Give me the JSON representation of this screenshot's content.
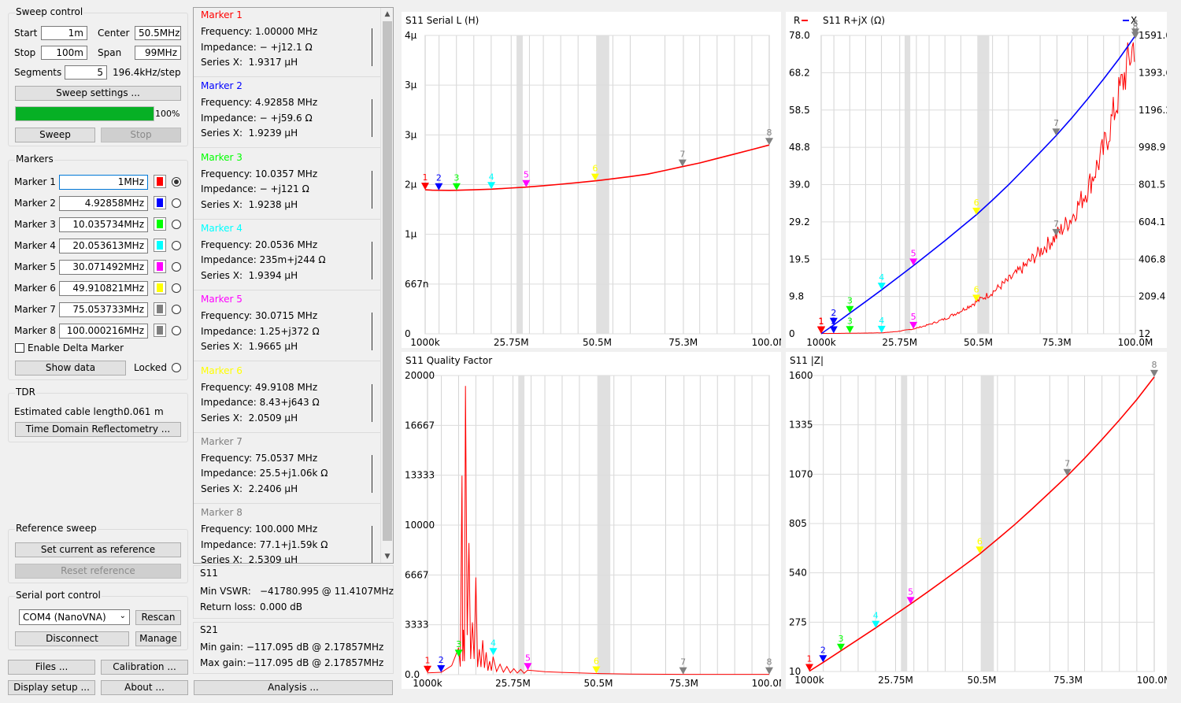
{
  "sweep_control": {
    "title": "Sweep control",
    "start_label": "Start",
    "start_value": "1m",
    "stop_label": "Stop",
    "stop_value": "100m",
    "center_label": "Center",
    "center_value": "50.5MHz",
    "span_label": "Span",
    "span_value": "99MHz",
    "segments_label": "Segments",
    "segments_value": "5",
    "step_text": "196.4kHz/step",
    "settings_button": "Sweep settings ...",
    "progress": 100,
    "progress_text": "100%",
    "sweep_button": "Sweep",
    "stop_button": "Stop"
  },
  "markers_panel": {
    "title": "Markers",
    "rows": [
      {
        "label": "Marker 1",
        "value": "1MHz",
        "color": "#ff0000",
        "selected": true
      },
      {
        "label": "Marker 2",
        "value": "4.92858MHz",
        "color": "#0000ff",
        "selected": false
      },
      {
        "label": "Marker 3",
        "value": "10.035734MHz",
        "color": "#00ff00",
        "selected": false
      },
      {
        "label": "Marker 4",
        "value": "20.053613MHz",
        "color": "#00ffff",
        "selected": false
      },
      {
        "label": "Marker 5",
        "value": "30.071492MHz",
        "color": "#ff00ff",
        "selected": false
      },
      {
        "label": "Marker 6",
        "value": "49.910821MHz",
        "color": "#ffff00",
        "selected": false
      },
      {
        "label": "Marker 7",
        "value": "75.053733MHz",
        "color": "#808080",
        "selected": false
      },
      {
        "label": "Marker 8",
        "value": "100.000216MHz",
        "color": "#808080",
        "selected": false
      }
    ],
    "delta_label": "Enable Delta Marker",
    "show_data_button": "Show data",
    "locked_label": "Locked"
  },
  "tdr": {
    "title": "TDR",
    "cable_label": "Estimated cable length:",
    "cable_value": "0.061",
    "cable_unit": "m",
    "button": "Time Domain Reflectometry ..."
  },
  "reference_sweep": {
    "title": "Reference sweep",
    "set_button": "Set current as reference",
    "reset_button": "Reset reference"
  },
  "serial_port": {
    "title": "Serial port control",
    "port": "COM4 (NanoVNA)",
    "rescan_button": "Rescan",
    "disconnect_button": "Disconnect",
    "manage_button": "Manage"
  },
  "bottom_buttons": {
    "files": "Files ...",
    "calibration": "Calibration ...",
    "display_setup": "Display setup ...",
    "about": "About ...",
    "analysis": "Analysis ..."
  },
  "marker_details": [
    {
      "title": "Marker 1",
      "color": "#ff0000",
      "freq_label": "Frequency:",
      "freq": "1.00000 MHz",
      "imp_label": "Impedance:",
      "imp": "− +j12.1 Ω",
      "sx_label": "Series X:",
      "sx": "1.9317 μH"
    },
    {
      "title": "Marker 2",
      "color": "#0000ff",
      "freq_label": "Frequency:",
      "freq": "4.92858 MHz",
      "imp_label": "Impedance:",
      "imp": "− +j59.6 Ω",
      "sx_label": "Series X:",
      "sx": "1.9239 μH"
    },
    {
      "title": "Marker 3",
      "color": "#00ff00",
      "freq_label": "Frequency:",
      "freq": "10.0357 MHz",
      "imp_label": "Impedance:",
      "imp": "− +j121 Ω",
      "sx_label": "Series X:",
      "sx": "1.9238 μH"
    },
    {
      "title": "Marker 4",
      "color": "#00ffff",
      "freq_label": "Frequency:",
      "freq": "20.0536 MHz",
      "imp_label": "Impedance:",
      "imp": "235m+j244 Ω",
      "sx_label": "Series X:",
      "sx": "1.9394 μH"
    },
    {
      "title": "Marker 5",
      "color": "#ff00ff",
      "freq_label": "Frequency:",
      "freq": "30.0715 MHz",
      "imp_label": "Impedance:",
      "imp": "1.25+j372 Ω",
      "sx_label": "Series X:",
      "sx": "1.9665 μH"
    },
    {
      "title": "Marker 6",
      "color": "#ffff00",
      "freq_label": "Frequency:",
      "freq": "49.9108 MHz",
      "imp_label": "Impedance:",
      "imp": "8.43+j643 Ω",
      "sx_label": "Series X:",
      "sx": "2.0509 μH"
    },
    {
      "title": "Marker 7",
      "color": "#808080",
      "freq_label": "Frequency:",
      "freq": "75.0537 MHz",
      "imp_label": "Impedance:",
      "imp": "25.5+j1.06k Ω",
      "sx_label": "Series X:",
      "sx": "2.2406 μH"
    },
    {
      "title": "Marker 8",
      "color": "#808080",
      "freq_label": "Frequency:",
      "freq": "100.000 MHz",
      "imp_label": "Impedance:",
      "imp": "77.1+j1.59k Ω",
      "sx_label": "Series X:",
      "sx": "2.5309 μH"
    }
  ],
  "s11_summary": {
    "title": "S11",
    "vswr_label": "Min VSWR:",
    "vswr_value": "−41780.995 @ 11.4107MHz",
    "return_loss_label": "Return loss:",
    "return_loss_value": "0.000 dB"
  },
  "s21_summary": {
    "title": "S21",
    "min_gain_label": "Min gain:",
    "min_gain_value": "−117.095 dB @ 2.17857MHz",
    "max_gain_label": "Max gain:",
    "max_gain_value": "−117.095 dB @ 2.17857MHz"
  },
  "chart_data": [
    {
      "id": "serial_l",
      "type": "line",
      "title": "S11 Serial L (H)",
      "x_ticks": [
        "1000k",
        "25.75M",
        "50.5M",
        "75.3M",
        "100.0M"
      ],
      "y_ticks": [
        "4μ",
        "3μ",
        "3μ",
        "2μ",
        "1μ",
        "667n",
        "0"
      ],
      "ylim": [
        0,
        4.0
      ],
      "series": [
        {
          "color": "#ff0000",
          "x": [
            1,
            3,
            5,
            8,
            10,
            15,
            20,
            25,
            30,
            35,
            40,
            45,
            50,
            55,
            60,
            65,
            70,
            75,
            80,
            85,
            90,
            95,
            100
          ],
          "y": [
            1.93,
            1.925,
            1.924,
            1.923,
            1.924,
            1.93,
            1.939,
            1.952,
            1.966,
            1.985,
            2.005,
            2.027,
            2.051,
            2.078,
            2.108,
            2.14,
            2.19,
            2.241,
            2.29,
            2.35,
            2.41,
            2.47,
            2.531
          ]
        }
      ],
      "markers": [
        {
          "n": "1",
          "x": 1,
          "y": 1.93
        },
        {
          "n": "2",
          "x": 4.93,
          "y": 1.924
        },
        {
          "n": "3",
          "x": 10.04,
          "y": 1.924
        },
        {
          "n": "4",
          "x": 20.05,
          "y": 1.939
        },
        {
          "n": "5",
          "x": 30.07,
          "y": 1.966
        },
        {
          "n": "6",
          "x": 49.91,
          "y": 2.051
        },
        {
          "n": "7",
          "x": 75.05,
          "y": 2.241
        },
        {
          "n": "8",
          "x": 100,
          "y": 2.531
        }
      ]
    },
    {
      "id": "rjx",
      "type": "line",
      "title": "S11 R+jX (Ω)",
      "legend_left": "R",
      "legend_right": "X",
      "x_ticks": [
        "1000k",
        "25.75M",
        "50.5M",
        "75.3M",
        "100.0M"
      ],
      "y_ticks_left": [
        "78.0",
        "68.2",
        "58.5",
        "48.8",
        "39.0",
        "29.2",
        "19.5",
        "9.8",
        "0"
      ],
      "y_ticks_right": [
        "1591.0",
        "1393.6",
        "1196.2",
        "998.9",
        "801.5",
        "604.1",
        "406.8",
        "209.4",
        "12"
      ],
      "ylim_left": [
        0,
        78
      ],
      "ylim_right": [
        12,
        1591
      ],
      "series": [
        {
          "name": "R",
          "color": "#ff0000",
          "axis": "left",
          "x": [
            1,
            5,
            10,
            15,
            20,
            25,
            30,
            35,
            40,
            45,
            50,
            55,
            60,
            65,
            70,
            75,
            80,
            85,
            90,
            95,
            100
          ],
          "y": [
            0.1,
            0.1,
            0.15,
            0.2,
            0.24,
            0.6,
            1.25,
            2.4,
            3.9,
            6.0,
            8.4,
            10.9,
            14.0,
            17.5,
            21.5,
            25.5,
            30.5,
            38.0,
            48.0,
            63.0,
            77.1
          ]
        },
        {
          "name": "X",
          "color": "#0000ff",
          "axis": "right",
          "x": [
            1,
            5,
            10,
            15,
            20,
            25,
            30,
            35,
            40,
            45,
            50,
            55,
            60,
            65,
            70,
            75,
            80,
            85,
            90,
            95,
            100
          ],
          "y": [
            12.1,
            59.6,
            121,
            182,
            244,
            308,
            372,
            438,
            505,
            574,
            643,
            720,
            800,
            885,
            972,
            1060,
            1155,
            1255,
            1360,
            1470,
            1590
          ]
        }
      ],
      "markers": [
        {
          "n": "1",
          "x": 1
        },
        {
          "n": "2",
          "x": 4.93
        },
        {
          "n": "3",
          "x": 10.04
        },
        {
          "n": "4",
          "x": 20.05
        },
        {
          "n": "5",
          "x": 30.07
        },
        {
          "n": "6",
          "x": 49.91
        },
        {
          "n": "7",
          "x": 75.05
        },
        {
          "n": "8",
          "x": 100
        }
      ]
    },
    {
      "id": "quality",
      "type": "line",
      "title": "S11 Quality Factor",
      "x_ticks": [
        "1000k",
        "25.75M",
        "50.5M",
        "75.3M",
        "100.0M"
      ],
      "y_ticks": [
        "20000",
        "16667",
        "13333",
        "10000",
        "6667",
        "3333",
        "0.0"
      ],
      "ylim": [
        0,
        20000
      ],
      "series": [
        {
          "color": "#ff0000",
          "x": [
            1,
            5,
            8,
            9,
            10,
            11,
            11.4,
            12,
            13,
            14,
            15,
            16,
            17,
            18,
            19,
            20,
            22,
            24,
            26,
            28,
            30,
            35,
            40,
            50,
            60,
            75,
            100
          ],
          "y": [
            120,
            160,
            600,
            1200,
            1800,
            13300,
            3000,
            19300,
            8800,
            3500,
            6500,
            1700,
            2300,
            1500,
            900,
            1200,
            700,
            550,
            400,
            350,
            300,
            200,
            150,
            80,
            40,
            20,
            20
          ]
        }
      ],
      "markers": [
        {
          "n": "1",
          "x": 1,
          "y": 120
        },
        {
          "n": "2",
          "x": 4.93,
          "y": 160
        },
        {
          "n": "3",
          "x": 10.04,
          "y": 1200
        },
        {
          "n": "4",
          "x": 20.05,
          "y": 1300
        },
        {
          "n": "5",
          "x": 30.07,
          "y": 300
        },
        {
          "n": "6",
          "x": 49.91,
          "y": 80
        },
        {
          "n": "7",
          "x": 75.05,
          "y": 20
        },
        {
          "n": "8",
          "x": 100,
          "y": 20
        }
      ]
    },
    {
      "id": "z_mag",
      "type": "line",
      "title": "S11 |Z|",
      "x_ticks": [
        "1000k",
        "25.75M",
        "50.5M",
        "75.3M",
        "100.0M"
      ],
      "y_ticks": [
        "1600",
        "1335",
        "1070",
        "805",
        "540",
        "275",
        "10"
      ],
      "ylim": [
        10,
        1600
      ],
      "series": [
        {
          "color": "#ff0000",
          "x": [
            1,
            5,
            10,
            15,
            20,
            25,
            30,
            35,
            40,
            45,
            50,
            55,
            60,
            65,
            70,
            75,
            80,
            85,
            90,
            95,
            100
          ],
          "y": [
            12.1,
            59.6,
            121,
            182,
            244,
            308,
            372,
            438,
            505,
            574,
            643,
            721,
            800,
            885,
            972,
            1060,
            1155,
            1256,
            1361,
            1471,
            1592
          ]
        }
      ],
      "markers": [
        {
          "n": "1",
          "x": 1,
          "y": 12.1
        },
        {
          "n": "2",
          "x": 4.93,
          "y": 59.6
        },
        {
          "n": "3",
          "x": 10.04,
          "y": 121
        },
        {
          "n": "4",
          "x": 20.05,
          "y": 244
        },
        {
          "n": "5",
          "x": 30.07,
          "y": 372
        },
        {
          "n": "6",
          "x": 49.91,
          "y": 643
        },
        {
          "n": "7",
          "x": 75.05,
          "y": 1060
        },
        {
          "n": "8",
          "x": 100,
          "y": 1592
        }
      ]
    }
  ]
}
